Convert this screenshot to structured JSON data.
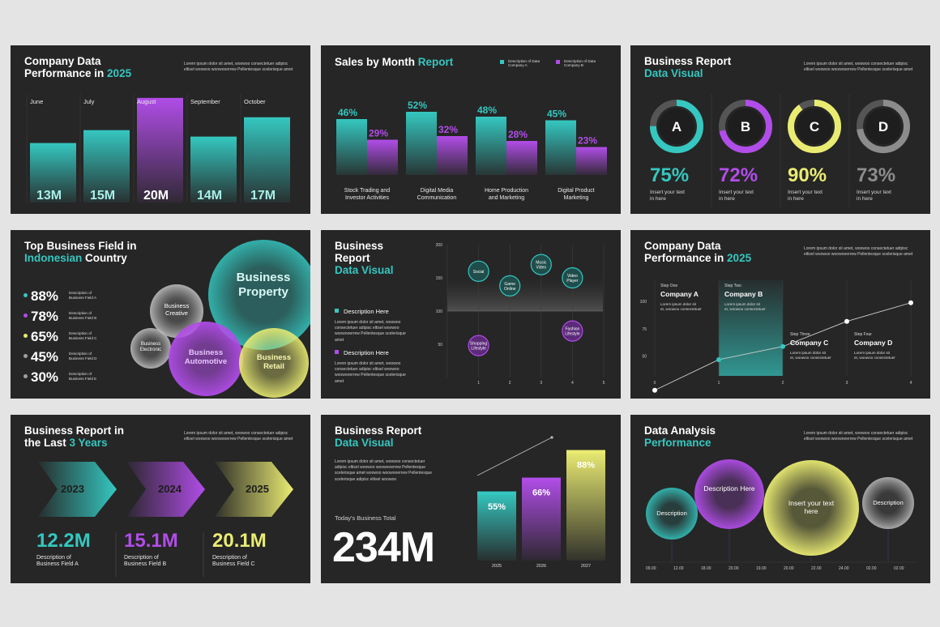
{
  "colors": {
    "teal": "#35c7c0",
    "purple": "#b14de8",
    "yellow": "#eaec72",
    "gray": "#8c8c8c",
    "bg": "#262626",
    "page": "#e4e4e4"
  },
  "lorem": "Lorem ipsum dolor sit amet, woowoo consectetuer adipisc eltisel woowoo woowooerrew Pellentesque scelerisque amet",
  "s1": {
    "title_a": "Company Data",
    "title_b": "Performance in ",
    "title_acc": "2025",
    "lorem": "Lorem ipsum dolor sit amet, woowoo consectetuer adipisc eltisel woowoo woowooerrew Pellentesque scelerisque amet",
    "chart_data": {
      "type": "bar",
      "categories": [
        "June",
        "July",
        "August",
        "September",
        "October"
      ],
      "values": [
        13,
        15,
        20,
        14,
        17
      ],
      "labels": [
        "13M",
        "15M",
        "20M",
        "14M",
        "17M"
      ],
      "ylim": [
        0,
        30
      ]
    }
  },
  "s2": {
    "title": "Sales by Month ",
    "title_acc": "Report",
    "legend_a": "Description of Data Company A",
    "legend_b": "Description of Data Company B",
    "chart_data": {
      "type": "bar",
      "categories": [
        "Stock Trading and Investor Activities",
        "Digital Media Communication",
        "Home Production and Marketing",
        "Digital Product Marketing"
      ],
      "series": [
        {
          "name": "Description of Data Company A",
          "values": [
            46,
            52,
            48,
            45
          ]
        },
        {
          "name": "Description of Data Company B",
          "values": [
            29,
            32,
            28,
            23
          ]
        }
      ],
      "ylim": [
        0,
        65
      ]
    }
  },
  "s3": {
    "title": "Business Report",
    "title_acc": "Data Visual",
    "lorem": "Lorem ipsum dolor sit amet, woowoo consectetuer adipisc eltisel woowoo woowooerrew Pellentesque scelerisque amet",
    "items": [
      {
        "letter": "A",
        "pct": "75%",
        "value": 75,
        "text": "Insert your text in here"
      },
      {
        "letter": "B",
        "pct": "72%",
        "value": 72,
        "text": "Insert your text in here"
      },
      {
        "letter": "C",
        "pct": "90%",
        "value": 90,
        "text": "Insert your text in here"
      },
      {
        "letter": "D",
        "pct": "73%",
        "value": 73,
        "text": "Insert your text in here"
      }
    ]
  },
  "s4": {
    "title_a": "Top Business Field in",
    "title_acc": "Indonesian",
    "title_b": " Country",
    "stats": [
      {
        "pct": "88%",
        "desc": "Description of Business Field A"
      },
      {
        "pct": "78%",
        "desc": "Description of Business Field B"
      },
      {
        "pct": "65%",
        "desc": "Description of Business Field C"
      },
      {
        "pct": "45%",
        "desc": "Description of Business Field D"
      },
      {
        "pct": "30%",
        "desc": "Description of Business Field E"
      }
    ],
    "bubbles": {
      "property": "Business Property",
      "creative": "Business Creative",
      "electronic": "Business Electronic",
      "automotive": "Business Automotive",
      "retail": "Business Retail"
    }
  },
  "s5": {
    "title_a": "Business",
    "title_b": "Report",
    "title_acc": "Data Visual",
    "desc_a": "Description Here",
    "desc_b": "Description Here",
    "lorem": "Lorem ipsum dolor sit amet, woowoo consectetuer adipisc eltisel woowoo woowooerrew Pellentesque scelerisque amet",
    "chart_data": {
      "type": "scatter",
      "xlim": [
        0,
        5
      ],
      "ylim": [
        0,
        200
      ],
      "xticks": [
        "1",
        "2",
        "3",
        "4",
        "5"
      ],
      "yticks": [
        "200",
        "150",
        "100",
        "50"
      ],
      "points": [
        {
          "label": "Social",
          "x": 1,
          "y": 160
        },
        {
          "label": "Game Online",
          "x": 2,
          "y": 138
        },
        {
          "label": "Music Video",
          "x": 3,
          "y": 170
        },
        {
          "label": "Video Player",
          "x": 4,
          "y": 150
        },
        {
          "label": "Shopping Lifestyle",
          "x": 1,
          "y": 48
        },
        {
          "label": "Fashion Lifestyle",
          "x": 4,
          "y": 70
        }
      ]
    }
  },
  "s6": {
    "title_a": "Company Data",
    "title_b": "Performance in ",
    "title_acc": "2025",
    "lorem": "Lorem ipsum dolor sit amet, woowoo consectetuer adipisc eltisel woowoo woowooerrew Pellentesque scelerisque amet",
    "steps": [
      {
        "step": "Step One",
        "name": "Company A",
        "desc": "Lorem ipsum dolor sit et, woowoo consectetuer"
      },
      {
        "step": "Step Two",
        "name": "Company B",
        "desc": "Lorem ipsum dolor sit et, woowoo consectetuer"
      },
      {
        "step": "Step Three",
        "name": "Company C",
        "desc": "Lorem ipsum dolor sit et, woowoo consectetuer"
      },
      {
        "step": "Step Four",
        "name": "Company D",
        "desc": "Lorem ipsum dolor sit et, woowoo consectetuer"
      }
    ],
    "chart_data": {
      "type": "line",
      "x": [
        0,
        1,
        2,
        3,
        4
      ],
      "y": [
        15,
        43,
        55,
        78,
        95
      ],
      "xticks": [
        "0",
        "1",
        "2",
        "3",
        "4"
      ],
      "yticks": [
        "100",
        "75",
        "50"
      ],
      "ylim": [
        0,
        110
      ]
    }
  },
  "s7": {
    "title_a": "Business Report in",
    "title_b": "the Last ",
    "title_acc": "3 Years",
    "lorem": "Lorem ipsum dolor sit amet, woowoo consectetuer adipisc eltisel woowoo woowooerrew Pellentesque scelerisque amet",
    "years": [
      {
        "year": "2023",
        "value": "12.2M",
        "desc": "Description of Business Field A"
      },
      {
        "year": "2024",
        "value": "15.1M",
        "desc": "Description of Business Field B"
      },
      {
        "year": "2025",
        "value": "20.1M",
        "desc": "Description of Business Field C"
      }
    ]
  },
  "s8": {
    "title": "Business Report",
    "title_acc": "Data Visual",
    "lorem": "Lorem ipsum dolor sit amet, woowoo consectetuer adipisc eltisel woowoo woowooerrew Pellentesque scelerisque amet woowoo woowooerrew Pellentesque scelerisque adipisc eltisel woowoo",
    "total_label": "Today's Business Total",
    "total": "234M",
    "chart_data": {
      "type": "bar",
      "categories": [
        "2025",
        "2026",
        "2027"
      ],
      "values": [
        55,
        66,
        88
      ],
      "labels": [
        "55%",
        "66%",
        "88%"
      ],
      "ylim": [
        0,
        100
      ]
    }
  },
  "s9": {
    "title_a": "Data Analysis",
    "title_acc": "Performance",
    "lorem": "Lorem ipsum dolor sit amet, woowoo consectetuer adipisc eltisel woowoo woowooerrew Pellentesque scelerisque amet",
    "bubbles": [
      "Description",
      "Description Here",
      "Insert your text here",
      "Description"
    ],
    "times": [
      "09.00",
      "12.00",
      "18.00",
      "20.00",
      "19.00",
      "20.00",
      "22.00",
      "24.00",
      "02.00",
      "02.00"
    ]
  }
}
